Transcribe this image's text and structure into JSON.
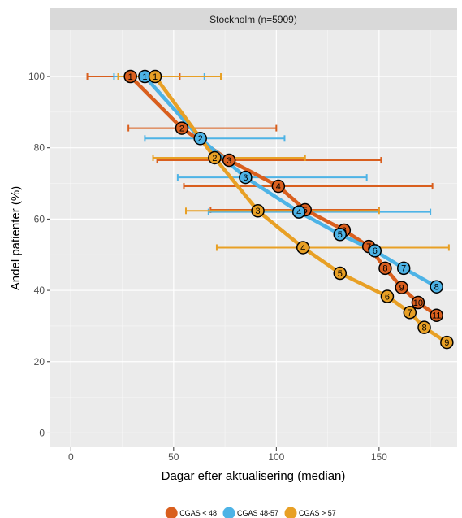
{
  "chart_data": {
    "type": "line",
    "title": "",
    "facet_label": "Stockholm (n=5909)",
    "xlabel": "Dagar efter aktualisering (median)",
    "ylabel": "Andel patienter (%)",
    "xlim": [
      -10,
      188
    ],
    "ylim": [
      -4,
      113
    ],
    "x_ticks": [
      0,
      50,
      100,
      150
    ],
    "y_ticks": [
      0,
      20,
      40,
      60,
      80,
      100
    ],
    "grid": true,
    "legend_position": "bottom",
    "series": [
      {
        "name": "CGAS < 48",
        "color": "#D95F1E",
        "points": [
          {
            "label": "1",
            "x": 29,
            "y": 100,
            "xmin": 8,
            "xmax": 53
          },
          {
            "label": "2",
            "x": 54,
            "y": 85.5,
            "xmin": 28,
            "xmax": 100
          },
          {
            "label": "3",
            "x": 77,
            "y": 76.5,
            "xmin": 42,
            "xmax": 151
          },
          {
            "label": "4",
            "x": 101,
            "y": 69.2,
            "xmin": 55,
            "xmax": 176
          },
          {
            "label": "5",
            "x": 114,
            "y": 62.6,
            "xmin": 68,
            "xmax": 150
          },
          {
            "label": "6",
            "x": 133,
            "y": 56.9
          },
          {
            "label": "7",
            "x": 145,
            "y": 52.3
          },
          {
            "label": "8",
            "x": 153,
            "y": 46.2
          },
          {
            "label": "9",
            "x": 161,
            "y": 40.8
          },
          {
            "label": "10",
            "x": 169,
            "y": 36.6
          },
          {
            "label": "11",
            "x": 178,
            "y": 33.0
          }
        ]
      },
      {
        "name": "CGAS 48-57",
        "color": "#4DB3E6",
        "points": [
          {
            "label": "1",
            "x": 36,
            "y": 100,
            "xmin": 21,
            "xmax": 65
          },
          {
            "label": "2",
            "x": 63,
            "y": 82.6,
            "xmin": 36,
            "xmax": 104
          },
          {
            "label": "3",
            "x": 85,
            "y": 71.7,
            "xmin": 52,
            "xmax": 144
          },
          {
            "label": "4",
            "x": 111,
            "y": 62.0,
            "xmin": 67,
            "xmax": 175
          },
          {
            "label": "5",
            "x": 131,
            "y": 55.7
          },
          {
            "label": "6",
            "x": 148,
            "y": 51.1
          },
          {
            "label": "7",
            "x": 162,
            "y": 46.2
          },
          {
            "label": "8",
            "x": 178,
            "y": 41.0
          }
        ]
      },
      {
        "name": "CGAS > 57",
        "color": "#E8A025",
        "points": [
          {
            "label": "1",
            "x": 41,
            "y": 100,
            "xmin": 23,
            "xmax": 73
          },
          {
            "label": "2",
            "x": 70,
            "y": 77.2,
            "xmin": 40,
            "xmax": 114
          },
          {
            "label": "3",
            "x": 91,
            "y": 62.3,
            "xmin": 56,
            "xmax": 150
          },
          {
            "label": "4",
            "x": 113,
            "y": 52.0,
            "xmin": 71,
            "xmax": 184
          },
          {
            "label": "5",
            "x": 131,
            "y": 44.8
          },
          {
            "label": "6",
            "x": 154,
            "y": 38.3
          },
          {
            "label": "7",
            "x": 165,
            "y": 33.8
          },
          {
            "label": "8",
            "x": 172,
            "y": 29.6
          },
          {
            "label": "9",
            "x": 183,
            "y": 25.4
          }
        ]
      }
    ]
  }
}
